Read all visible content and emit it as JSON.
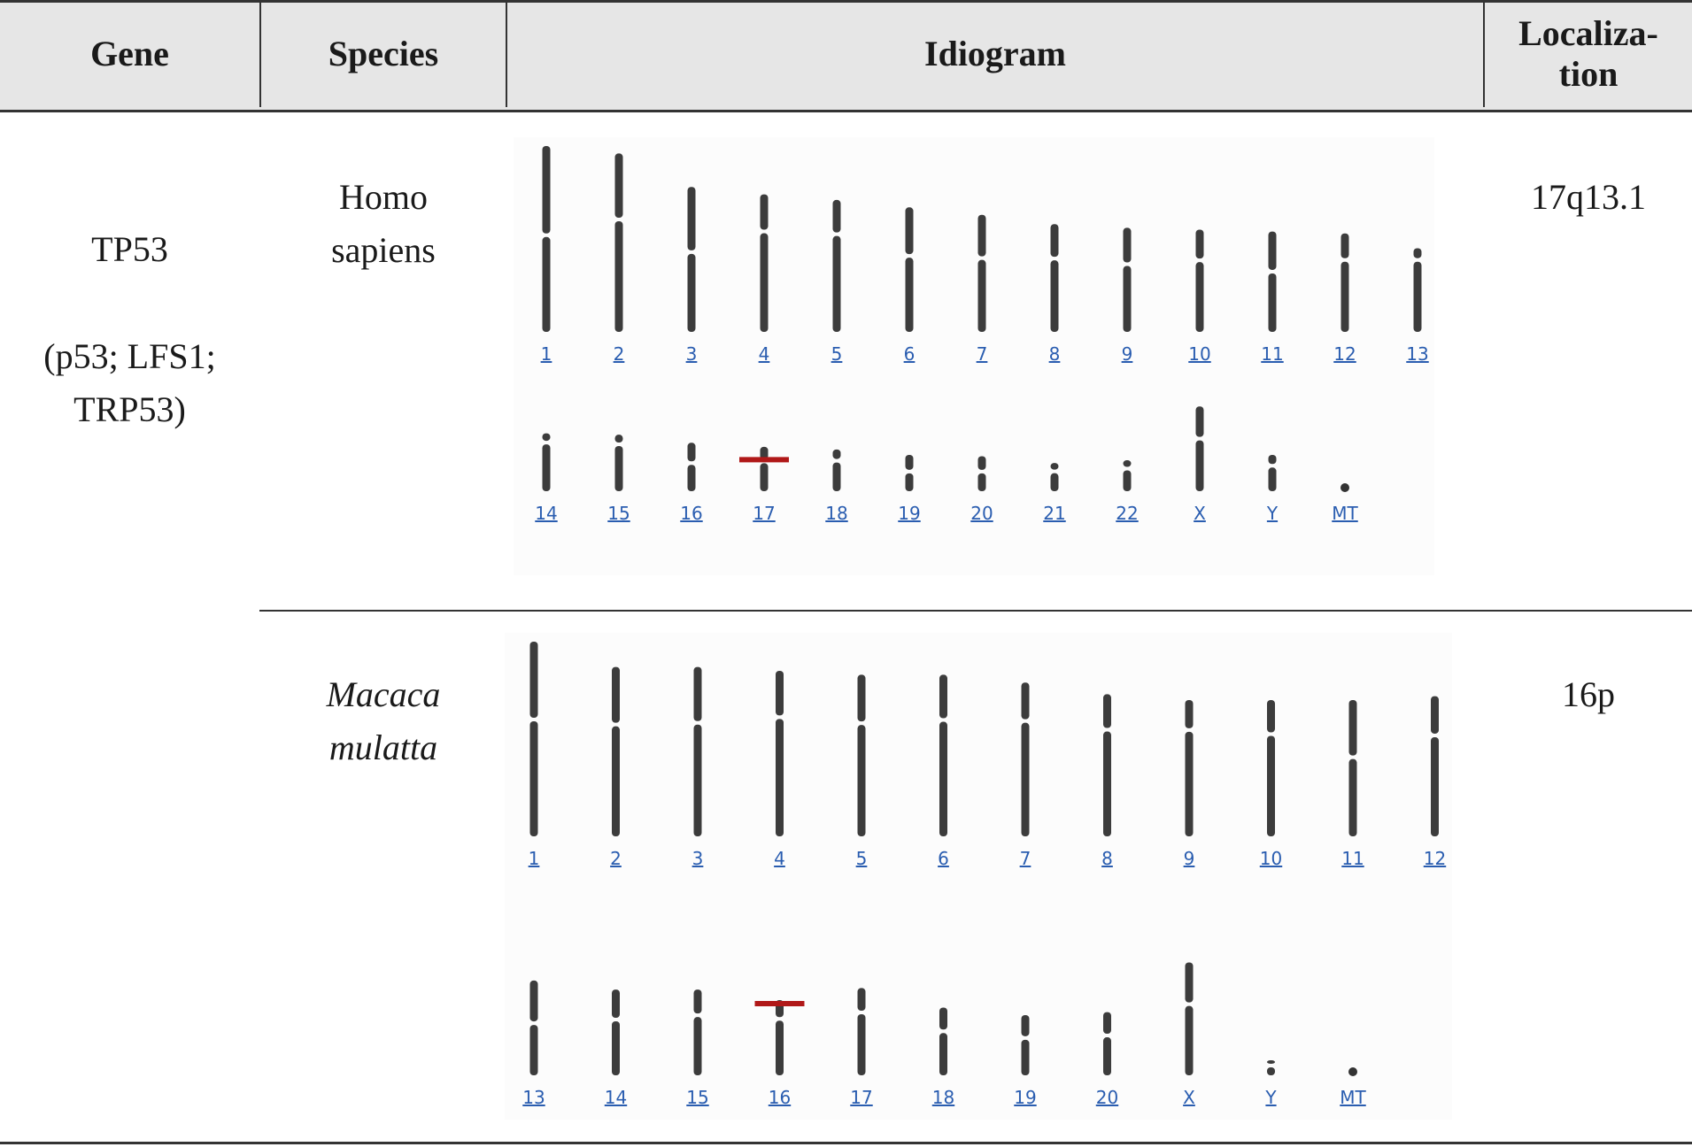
{
  "header": {
    "gene": "Gene",
    "species": "Species",
    "idiogram": "Idiogram",
    "localization_line1": "Localiza-",
    "localization_line2": "tion"
  },
  "gene": {
    "name": "TP53",
    "aliases_line1": "(p53; LFS1;",
    "aliases_line2": "TRP53)"
  },
  "rows": [
    {
      "species_line1": "Homo",
      "species_line2": "sapiens",
      "localization": "17q13.1",
      "marker_chromosome": "17",
      "chromosomes": [
        {
          "label": "1",
          "length": 1.0,
          "centromere": 0.48
        },
        {
          "label": "2",
          "length": 0.96,
          "centromere": 0.37
        },
        {
          "label": "3",
          "length": 0.78,
          "centromere": 0.45
        },
        {
          "label": "4",
          "length": 0.74,
          "centromere": 0.27
        },
        {
          "label": "5",
          "length": 0.71,
          "centromere": 0.26
        },
        {
          "label": "6",
          "length": 0.67,
          "centromere": 0.39
        },
        {
          "label": "7",
          "length": 0.63,
          "centromere": 0.37
        },
        {
          "label": "8",
          "length": 0.58,
          "centromere": 0.32
        },
        {
          "label": "9",
          "length": 0.56,
          "centromere": 0.35
        },
        {
          "label": "10",
          "length": 0.55,
          "centromere": 0.3
        },
        {
          "label": "11",
          "length": 0.54,
          "centromere": 0.4
        },
        {
          "label": "12",
          "length": 0.53,
          "centromere": 0.27
        },
        {
          "label": "13",
          "length": 0.45,
          "centromere": 0.14
        },
        {
          "label": "14",
          "length": 0.43,
          "centromere": 0.16
        },
        {
          "label": "15",
          "length": 0.42,
          "centromere": 0.17
        },
        {
          "label": "16",
          "length": 0.36,
          "centromere": 0.42
        },
        {
          "label": "17",
          "length": 0.33,
          "centromere": 0.33
        },
        {
          "label": "18",
          "length": 0.31,
          "centromere": 0.27
        },
        {
          "label": "19",
          "length": 0.27,
          "centromere": 0.46
        },
        {
          "label": "20",
          "length": 0.26,
          "centromere": 0.44
        },
        {
          "label": "21",
          "length": 0.21,
          "centromere": 0.3
        },
        {
          "label": "22",
          "length": 0.23,
          "centromere": 0.27
        },
        {
          "label": "X",
          "length": 0.63,
          "centromere": 0.38
        },
        {
          "label": "Y",
          "length": 0.27,
          "centromere": 0.3
        },
        {
          "label": "MT",
          "length": 0.0,
          "centromere": 0.0
        }
      ]
    },
    {
      "species_line1": "Macaca",
      "species_line2": "mulatta",
      "localization": "16p",
      "marker_chromosome": "16",
      "chromosomes": [
        {
          "label": "1",
          "length": 1.0,
          "centromere": 0.4
        },
        {
          "label": "2",
          "length": 0.87,
          "centromere": 0.34
        },
        {
          "label": "3",
          "length": 0.87,
          "centromere": 0.33
        },
        {
          "label": "4",
          "length": 0.85,
          "centromere": 0.28
        },
        {
          "label": "5",
          "length": 0.83,
          "centromere": 0.3
        },
        {
          "label": "6",
          "length": 0.83,
          "centromere": 0.28
        },
        {
          "label": "7",
          "length": 0.79,
          "centromere": 0.25
        },
        {
          "label": "8",
          "length": 0.73,
          "centromere": 0.25
        },
        {
          "label": "9",
          "length": 0.7,
          "centromere": 0.22
        },
        {
          "label": "10",
          "length": 0.7,
          "centromere": 0.25
        },
        {
          "label": "11",
          "length": 0.7,
          "centromere": 0.42
        },
        {
          "label": "12",
          "length": 0.72,
          "centromere": 0.28
        },
        {
          "label": "13",
          "length": 0.63,
          "centromere": 0.45
        },
        {
          "label": "14",
          "length": 0.57,
          "centromere": 0.35
        },
        {
          "label": "15",
          "length": 0.57,
          "centromere": 0.3
        },
        {
          "label": "16",
          "length": 0.5,
          "centromere": 0.25
        },
        {
          "label": "17",
          "length": 0.58,
          "centromere": 0.28
        },
        {
          "label": "18",
          "length": 0.45,
          "centromere": 0.35
        },
        {
          "label": "19",
          "length": 0.4,
          "centromere": 0.38
        },
        {
          "label": "20",
          "length": 0.42,
          "centromere": 0.37
        },
        {
          "label": "X",
          "length": 0.75,
          "centromere": 0.37
        },
        {
          "label": "Y",
          "length": 0.1,
          "centromere": 0.35
        },
        {
          "label": "MT",
          "length": 0.0,
          "centromere": 0.0
        }
      ]
    }
  ]
}
